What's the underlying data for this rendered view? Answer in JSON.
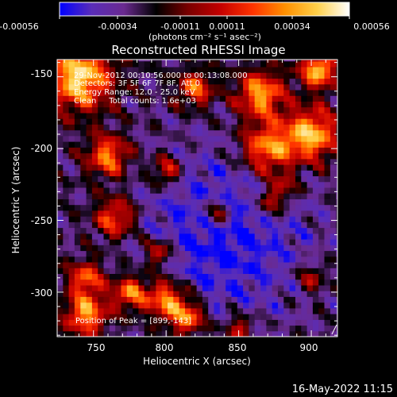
{
  "colorbar": {
    "ticks": [
      "-0.00056",
      "-0.00034",
      "-0.00011",
      "0.00011",
      "0.00034",
      "0.00056"
    ],
    "unit_label": "(photons cm⁻² s⁻¹ asec⁻²)",
    "stops": [
      "#0000ff",
      "#5a2db8",
      "#6a2a8f",
      "#000000",
      "#7a0000",
      "#c40000",
      "#ff3300",
      "#ff9000",
      "#ffd04a",
      "#ffffff"
    ],
    "vmin": -0.00056,
    "vmax": 0.00056
  },
  "chart_data": {
    "type": "heatmap",
    "title": "Reconstructed RHESSI Image",
    "xlabel": "Heliocentric X (arcsec)",
    "ylabel": "Heliocentric Y (arcsec)",
    "xlim": [
      725,
      918
    ],
    "ylim": [
      -331,
      -138
    ],
    "xticks": [
      750,
      800,
      850,
      900
    ],
    "yticks": [
      -150,
      -200,
      -250,
      -300
    ],
    "xtick_labels": [
      "750",
      "800",
      "850",
      "900"
    ],
    "ytick_labels": [
      "-150",
      "-200",
      "-250",
      "-300"
    ],
    "annotations": [
      "29-Nov-2012 00:10:56.000 to 00:13:08.000",
      "Detectors: 3F 5F 6F 7F 8F, Att 0",
      "Energy Range: 12.0 - 25.0 keV",
      "Clean     Total counts: 1.6e+03"
    ],
    "peak_label": "Position of Peak = [899,-143]",
    "peak": [
      899,
      -143
    ],
    "grid": false
  },
  "footer": {
    "timestamp": "16-May-2022 11:15"
  }
}
